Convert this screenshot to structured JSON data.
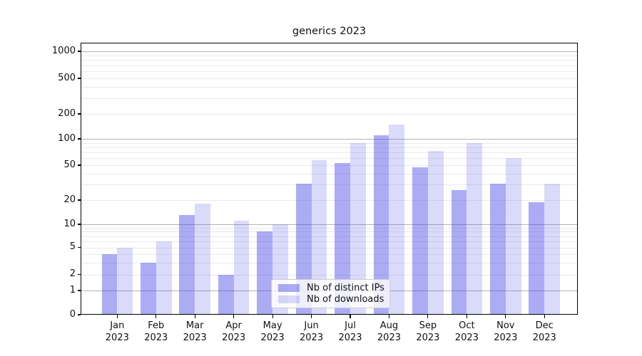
{
  "title": "generics 2023",
  "chart_data": {
    "type": "bar",
    "title": "generics 2023",
    "categories": [
      "Jan 2023",
      "Feb 2023",
      "Mar 2023",
      "Apr 2023",
      "May 2023",
      "Jun 2023",
      "Jul 2023",
      "Aug 2023",
      "Sep 2023",
      "Oct 2023",
      "Nov 2023",
      "Dec 2023"
    ],
    "series": [
      {
        "name": "Nb of distinct IPs",
        "color": "#4646e6",
        "alpha": 0.45,
        "values": [
          4,
          3,
          13,
          2,
          8,
          31,
          53,
          110,
          47,
          26,
          31,
          19
        ]
      },
      {
        "name": "Nb of downloads",
        "color": "#4646e6",
        "alpha": 0.2,
        "values": [
          5,
          6,
          18,
          11,
          10,
          57,
          90,
          150,
          73,
          90,
          60,
          31
        ]
      }
    ],
    "y_axis": {
      "scale": "symlog",
      "tick_values": [
        0,
        1,
        2,
        5,
        10,
        20,
        50,
        100,
        200,
        500,
        1000
      ],
      "tick_labels": [
        "0",
        "1",
        "2",
        "5",
        "10",
        "20",
        "50",
        "100",
        "200",
        "500",
        "1000"
      ],
      "major_values": [
        1,
        10,
        100,
        1000
      ],
      "range": [
        0,
        1000
      ]
    },
    "legend_position": "lower center",
    "grid": true
  },
  "colors": {
    "bar_base": "#4646e6",
    "major_grid": "#b3b3b3",
    "minor_grid": "#eaeaea",
    "axis": "#000000",
    "background": "#ffffff",
    "legend_border": "#cccccc"
  }
}
